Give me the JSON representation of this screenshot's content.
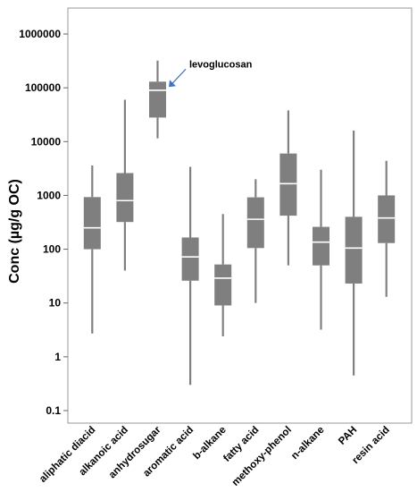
{
  "chart_data": {
    "type": "box",
    "ylabel": "Conc (µg/g OC)",
    "yscale": "log",
    "ylim": [
      0.1,
      3000000
    ],
    "yticks": [
      0.1,
      1,
      10,
      100,
      1000,
      10000,
      100000,
      1000000
    ],
    "ytick_labels": [
      "0.1",
      "1",
      "10",
      "100",
      "1000",
      "10000",
      "100000",
      "1000000"
    ],
    "categories": [
      "aliphatic diacid",
      "alkanoic acid",
      "anhydrosugar",
      "aromatic acid",
      "b-alkane",
      "fatty acid",
      "methoxy-phenol",
      "n-alkane",
      "PAH",
      "resin acid"
    ],
    "boxes": [
      {
        "category": "aliphatic diacid",
        "min": 2.7,
        "q1": 100,
        "median": 250,
        "q3": 930,
        "max": 3600
      },
      {
        "category": "alkanoic acid",
        "min": 40,
        "q1": 320,
        "median": 800,
        "q3": 2600,
        "max": 60000
      },
      {
        "category": "anhydrosugar",
        "min": 11500,
        "q1": 28000,
        "median": 90000,
        "q3": 130000,
        "max": 320000
      },
      {
        "category": "aromatic acid",
        "min": 0.3,
        "q1": 26,
        "median": 72,
        "q3": 165,
        "max": 3400
      },
      {
        "category": "b-alkane",
        "min": 2.4,
        "q1": 9,
        "median": 29,
        "q3": 52,
        "max": 450
      },
      {
        "category": "fatty acid",
        "min": 10,
        "q1": 105,
        "median": 360,
        "q3": 920,
        "max": 2000
      },
      {
        "category": "methoxy-phenol",
        "min": 50,
        "q1": 420,
        "median": 1650,
        "q3": 6000,
        "max": 38000
      },
      {
        "category": "n-alkane",
        "min": 3.2,
        "q1": 50,
        "median": 135,
        "q3": 260,
        "max": 3000
      },
      {
        "category": "PAH",
        "min": 0.45,
        "q1": 23,
        "median": 105,
        "q3": 400,
        "max": 16000
      },
      {
        "category": "resin acid",
        "min": 13,
        "q1": 130,
        "median": 380,
        "q3": 1000,
        "max": 4400
      }
    ],
    "box_color": "#7f7f7f",
    "whisker_color": "#808080",
    "median_color": "#ffffff",
    "annotation": {
      "text": "levoglucosan",
      "target": "anhydrosugar",
      "arrow_color": "#4472c4"
    },
    "grid": false
  }
}
